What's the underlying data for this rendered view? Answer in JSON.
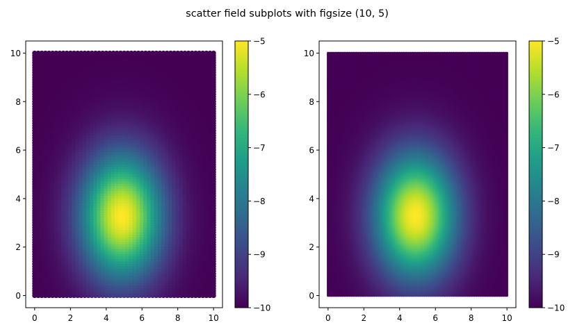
{
  "figure": {
    "title": "scatter field subplots with figsize (10, 5)"
  },
  "colors": {
    "axes_edge": "#000000",
    "background": "#ffffff",
    "colormap": "viridis",
    "viridis_stops": [
      "#440154",
      "#482878",
      "#3e4989",
      "#31688e",
      "#26828e",
      "#1f9e89",
      "#35b779",
      "#6ece58",
      "#b5de2b",
      "#fde725"
    ]
  },
  "chart_data": [
    {
      "type": "scatter",
      "title": "",
      "xlabel": "",
      "ylabel": "",
      "xlim": [
        -0.5,
        10.5
      ],
      "ylim": [
        -0.5,
        10.5
      ],
      "xticks": [
        "0",
        "2",
        "4",
        "6",
        "8",
        "10"
      ],
      "yticks": [
        "0",
        "2",
        "4",
        "6",
        "8",
        "10"
      ],
      "grid": false,
      "grid_points": {
        "x_start": 0,
        "x_end": 10,
        "nx": 51,
        "y_start": 0,
        "y_end": 10,
        "ny": 101
      },
      "field": {
        "description_type": "gaussian-peak",
        "peak_center": [
          4.9,
          3.3
        ],
        "sigma_x": 1.6,
        "sigma_y": 1.8,
        "vmin": -10,
        "vmax": -5
      },
      "colorbar": {
        "ticks": [
          "−10",
          "−9",
          "−8",
          "−7",
          "−6",
          "−5"
        ],
        "range": [
          -10,
          -5
        ]
      }
    },
    {
      "type": "scatter",
      "title": "",
      "xlabel": "",
      "ylabel": "",
      "xlim": [
        -0.5,
        10.5
      ],
      "ylim": [
        -0.5,
        10.5
      ],
      "xticks": [
        "0",
        "2",
        "4",
        "6",
        "8",
        "10"
      ],
      "yticks": [
        "0",
        "2",
        "4",
        "6",
        "8",
        "10"
      ],
      "grid": false,
      "grid_points": {
        "x_start": 0,
        "x_end": 10,
        "nx": 101,
        "y_start": 0,
        "y_end": 10,
        "ny": 201
      },
      "field": {
        "description_type": "gaussian-peak",
        "peak_center": [
          4.9,
          3.3
        ],
        "sigma_x": 1.6,
        "sigma_y": 1.8,
        "vmin": -10,
        "vmax": -5
      },
      "colorbar": {
        "ticks": [
          "−10",
          "−9",
          "−8",
          "−7",
          "−6",
          "−5"
        ],
        "range": [
          -10,
          -5
        ]
      }
    }
  ]
}
